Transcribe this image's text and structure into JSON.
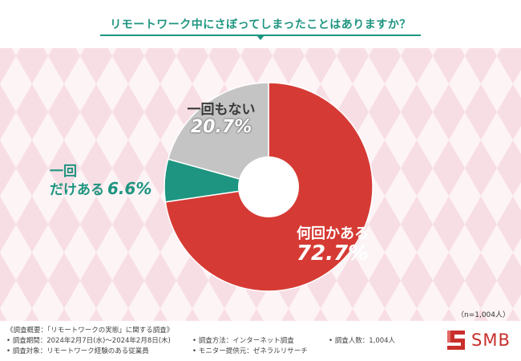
{
  "title": "リモートワーク中にさぼってしまったことはありますか？",
  "sample_size": "（n=1,004人）",
  "labels": {
    "none": {
      "name": "一回もない",
      "value": "20.7%"
    },
    "once": {
      "line1": "一回",
      "line2": "だけある",
      "value": "6.6%"
    },
    "many": {
      "name": "何回かある",
      "value": "72.7%"
    }
  },
  "chart_data": {
    "type": "pie",
    "title": "リモートワーク中にさぼってしまったことはありますか？",
    "donut": true,
    "slices": [
      {
        "label": "何回かある",
        "value": 72.7,
        "color": "#d63a34"
      },
      {
        "label": "一回だけある",
        "value": 6.6,
        "color": "#1e9580"
      },
      {
        "label": "一回もない",
        "value": 20.7,
        "color": "#c4c4c4"
      }
    ],
    "start": "12 o'clock",
    "direction": "clockwise"
  },
  "footer": {
    "overview": "《調査概要：「リモートワークの実態」に関する調査》",
    "period": "• 調査期間：2024年2月7日(水)～2024年2月8日(木)",
    "target": "• 調査対象：リモートワーク経験のある従業員",
    "method": "• 調査方法：インターネット調査",
    "provider": "• モニター提供元：ゼネラルリサーチ",
    "count": "• 調査人数：1,004人"
  },
  "logo": {
    "text": "SMB",
    "color": "#c9302c"
  }
}
